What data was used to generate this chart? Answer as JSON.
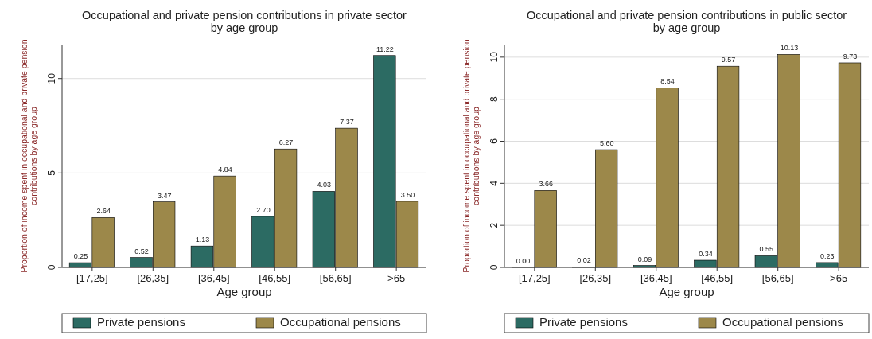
{
  "chart_data": [
    {
      "type": "bar",
      "title": "Occupational and private pension contributions in private sector\nby age group",
      "xlabel": "Age group",
      "ylabel": "Proportion of income spent in occupational and private pension\ncontributions by age group",
      "categories": [
        "[17,25]",
        "[26,35]",
        "[36,45]",
        "[46,55]",
        "[56,65]",
        ">65"
      ],
      "series": [
        {
          "name": "Private pensions",
          "color": "#2c6b63",
          "values": [
            0.25,
            0.52,
            1.13,
            2.7,
            4.03,
            11.22
          ],
          "value_labels": [
            "0.25",
            "0.52",
            "1.13",
            "2.70",
            "4.03",
            "11.22"
          ]
        },
        {
          "name": "Occupational pensions",
          "color": "#9c884a",
          "values": [
            2.64,
            3.47,
            4.84,
            6.27,
            7.37,
            3.5
          ],
          "value_labels": [
            "2.64",
            "3.47",
            "4.84",
            "6.27",
            "7.37",
            "3.50"
          ]
        }
      ],
      "ylim": [
        0,
        11.8
      ],
      "yticks": [
        0,
        5,
        10
      ],
      "grid": "y",
      "legend": "bottom"
    },
    {
      "type": "bar",
      "title": "Occupational and private pension contributions in public sector\nby age group",
      "xlabel": "Age group",
      "ylabel": "Proportion of income spent in occupational and private pension\ncontributions by age group",
      "categories": [
        "[17,25]",
        "[26,35]",
        "[36,45]",
        "[46,55]",
        "[56,65]",
        ">65"
      ],
      "series": [
        {
          "name": "Private pensions",
          "color": "#2c6b63",
          "values": [
            0.0,
            0.02,
            0.09,
            0.34,
            0.55,
            0.23
          ],
          "value_labels": [
            "0.00",
            "0.02",
            "0.09",
            "0.34",
            "0.55",
            "0.23"
          ]
        },
        {
          "name": "Occupational pensions",
          "color": "#9c884a",
          "values": [
            3.66,
            5.6,
            8.54,
            9.57,
            10.13,
            9.73
          ],
          "value_labels": [
            "3.66",
            "5.60",
            "8.54",
            "9.57",
            "10.13",
            "9.73"
          ]
        }
      ],
      "ylim": [
        0,
        10.6
      ],
      "yticks": [
        0,
        2,
        4,
        6,
        8,
        10
      ],
      "grid": "y",
      "legend": "bottom"
    }
  ]
}
